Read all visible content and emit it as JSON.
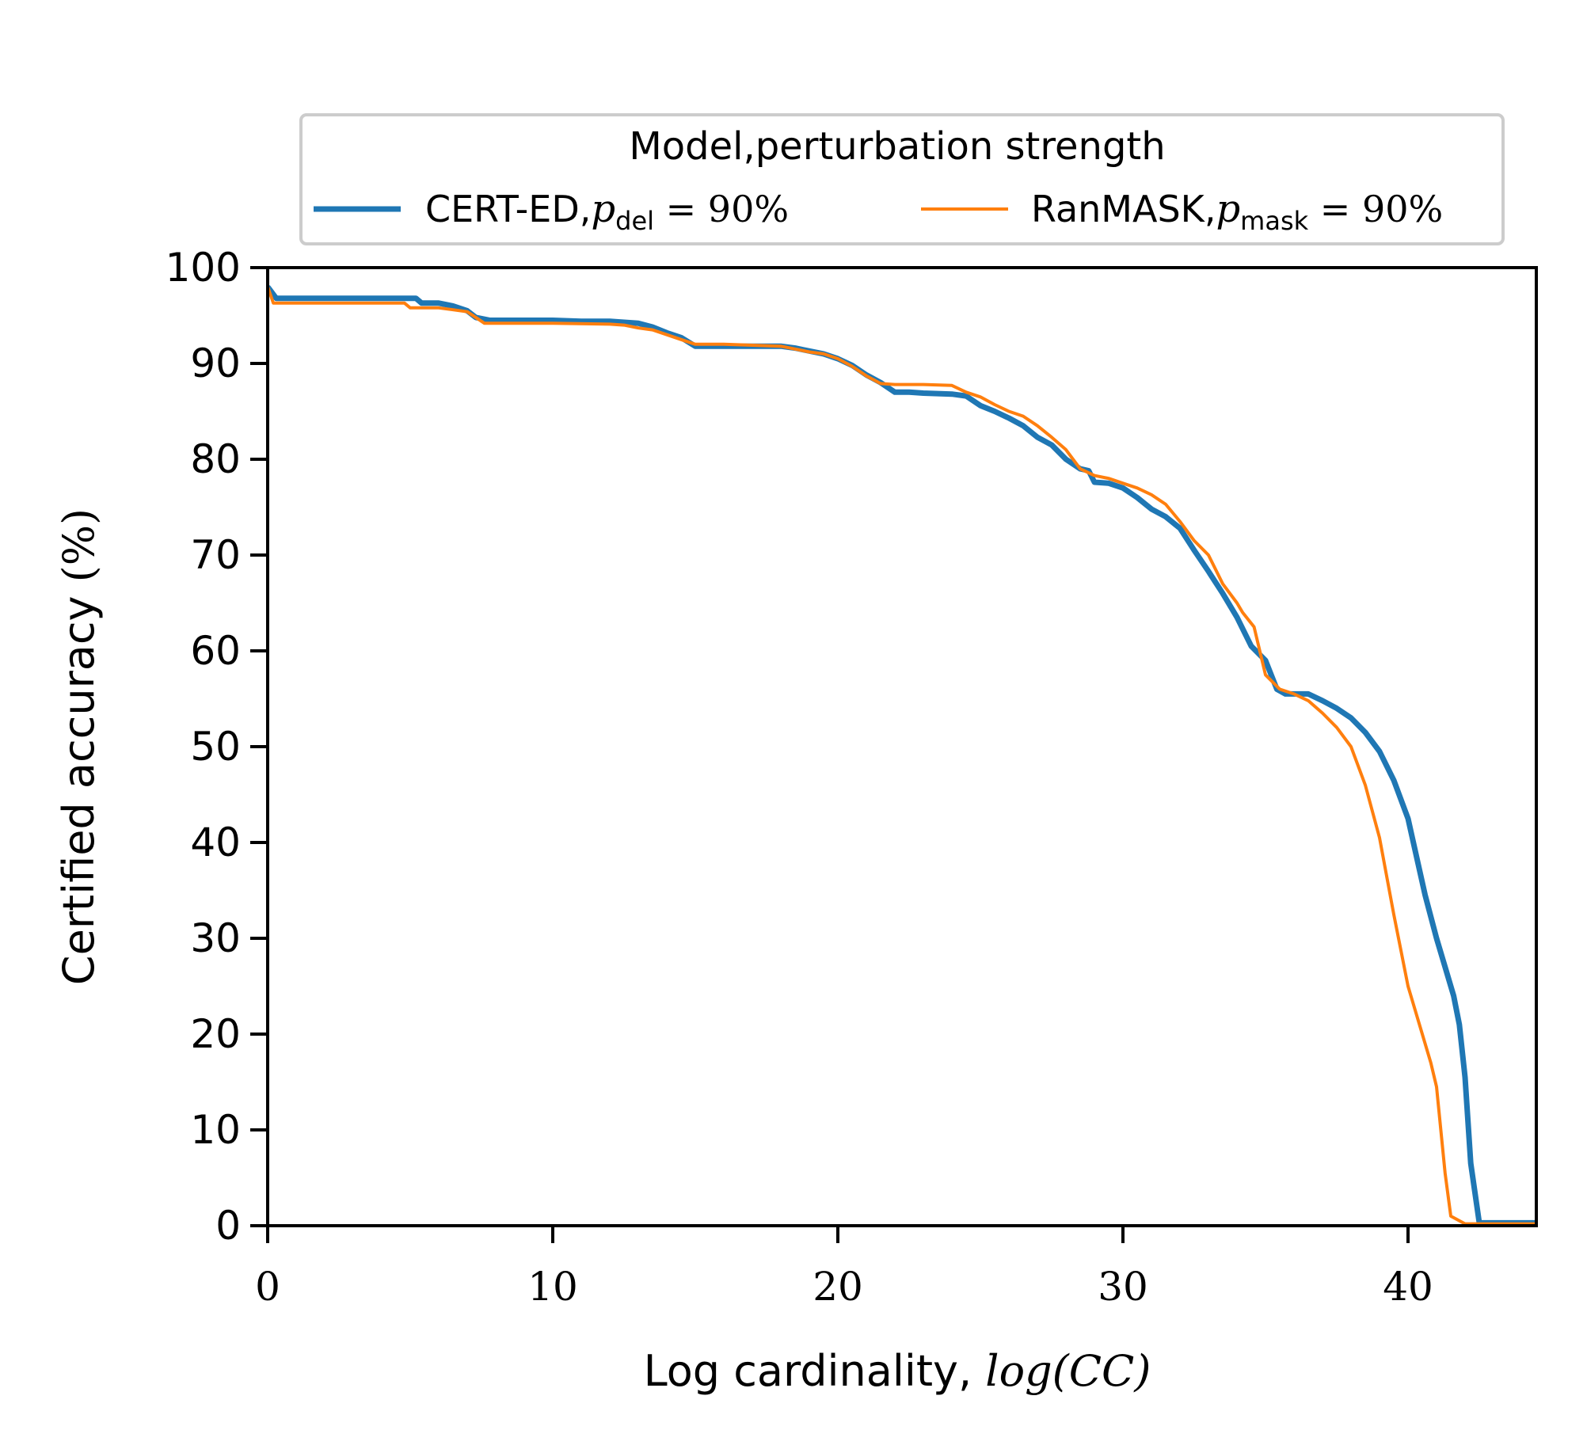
{
  "chart_data": {
    "type": "line",
    "title": "",
    "xlabel_text": "Log cardinality, ",
    "xlabel_math": "log(CC)",
    "ylabel_text": "Certified accuracy ",
    "ylabel_math": "(%)",
    "xlim": [
      0,
      44.5
    ],
    "ylim": [
      0,
      100
    ],
    "xticks": [
      0,
      10,
      20,
      30,
      40
    ],
    "xtick_labels": [
      "0",
      "10",
      "20",
      "30",
      "40"
    ],
    "yticks": [
      0,
      10,
      20,
      30,
      40,
      50,
      60,
      70,
      80,
      90,
      100
    ],
    "ytick_labels": [
      "0",
      "10",
      "20",
      "30",
      "40",
      "50",
      "60",
      "70",
      "80",
      "90",
      "100"
    ],
    "grid": false,
    "legend": {
      "title": "Model,perturbation strength",
      "placement": "above plot, centered",
      "entries": [
        {
          "label": "CERT-ED,",
          "math_var": "p",
          "math_sub": "del",
          "math_rest": " = 90%"
        },
        {
          "label": "RanMASK,",
          "math_var": "p",
          "math_sub": "mask",
          "math_rest": " = 90%"
        }
      ]
    },
    "series": [
      {
        "name": "CERT-ED, p_del = 90%",
        "color": "#1f77b4",
        "line_width": "thick",
        "x": [
          0,
          0.3,
          5.2,
          5.4,
          6.0,
          6.5,
          7.0,
          7.3,
          7.8,
          8.5,
          10.0,
          11.0,
          12.0,
          13.0,
          13.5,
          14.0,
          14.5,
          15.0,
          16.0,
          17.0,
          18.0,
          18.5,
          19.0,
          19.5,
          20.0,
          20.5,
          21.0,
          21.5,
          22.0,
          22.5,
          23.0,
          24.0,
          24.5,
          25.0,
          25.5,
          26.0,
          26.5,
          27.0,
          27.5,
          28.0,
          28.5,
          28.8,
          29.0,
          29.5,
          30.0,
          30.5,
          31.0,
          31.5,
          32.0,
          32.5,
          33.0,
          33.5,
          34.0,
          34.5,
          35.0,
          35.2,
          35.4,
          35.7,
          36.0,
          36.5,
          37.0,
          37.5,
          38.0,
          38.5,
          39.0,
          39.5,
          40.0,
          40.3,
          40.6,
          41.0,
          41.3,
          41.6,
          41.8,
          42.0,
          42.2,
          42.5,
          44.5
        ],
        "values": [
          98.0,
          96.8,
          96.8,
          96.3,
          96.3,
          96.0,
          95.5,
          94.8,
          94.5,
          94.5,
          94.5,
          94.4,
          94.4,
          94.2,
          93.8,
          93.2,
          92.7,
          91.8,
          91.8,
          91.8,
          91.8,
          91.6,
          91.3,
          91.0,
          90.5,
          89.8,
          88.8,
          88.0,
          87.0,
          87.0,
          86.9,
          86.8,
          86.6,
          85.6,
          85.0,
          84.3,
          83.5,
          82.3,
          81.5,
          80.0,
          79.0,
          78.8,
          77.6,
          77.5,
          77.0,
          76.0,
          74.8,
          74.0,
          72.8,
          70.5,
          68.3,
          66.0,
          63.5,
          60.5,
          59.0,
          57.5,
          56.0,
          55.5,
          55.5,
          55.5,
          54.8,
          54.0,
          53.0,
          51.5,
          49.5,
          46.5,
          42.5,
          38.5,
          34.5,
          30.0,
          27.0,
          24.0,
          21.0,
          15.5,
          6.5,
          0.3,
          0.3
        ]
      },
      {
        "name": "RanMASK, p_mask = 90%",
        "color": "#ff7f0e",
        "line_width": "thin",
        "x": [
          0,
          0.2,
          4.8,
          5.0,
          6.0,
          6.5,
          7.0,
          7.3,
          7.6,
          8.0,
          10.0,
          12.0,
          12.5,
          13.0,
          13.5,
          14.0,
          14.5,
          15.0,
          16.0,
          17.0,
          18.0,
          18.5,
          19.0,
          19.5,
          20.0,
          20.5,
          21.0,
          21.5,
          22.0,
          23.0,
          24.0,
          24.5,
          25.0,
          25.5,
          26.0,
          26.5,
          27.0,
          27.5,
          28.0,
          28.5,
          29.0,
          29.5,
          30.0,
          30.5,
          31.0,
          31.5,
          32.0,
          32.5,
          33.0,
          33.5,
          34.0,
          34.2,
          34.6,
          35.0,
          35.5,
          36.0,
          36.5,
          37.0,
          37.5,
          38.0,
          38.5,
          39.0,
          39.5,
          40.0,
          40.5,
          40.8,
          41.0,
          41.3,
          41.5,
          42.0,
          44.5
        ],
        "values": [
          98.0,
          96.3,
          96.3,
          95.8,
          95.8,
          95.6,
          95.4,
          94.8,
          94.2,
          94.2,
          94.2,
          94.1,
          94.0,
          93.7,
          93.5,
          93.0,
          92.5,
          92.0,
          92.0,
          91.9,
          91.8,
          91.5,
          91.2,
          91.0,
          90.5,
          89.7,
          88.7,
          87.9,
          87.8,
          87.8,
          87.7,
          87.0,
          86.5,
          85.7,
          85.0,
          84.5,
          83.5,
          82.3,
          81.0,
          79.0,
          78.3,
          78.0,
          77.5,
          77.0,
          76.3,
          75.3,
          73.5,
          71.5,
          70.0,
          67.0,
          65.0,
          64.0,
          62.5,
          57.5,
          56.0,
          55.5,
          54.8,
          53.5,
          52.0,
          50.0,
          46.0,
          40.5,
          32.5,
          25.0,
          20.0,
          17.0,
          14.5,
          5.5,
          1.0,
          0.2,
          0.2
        ]
      }
    ]
  }
}
